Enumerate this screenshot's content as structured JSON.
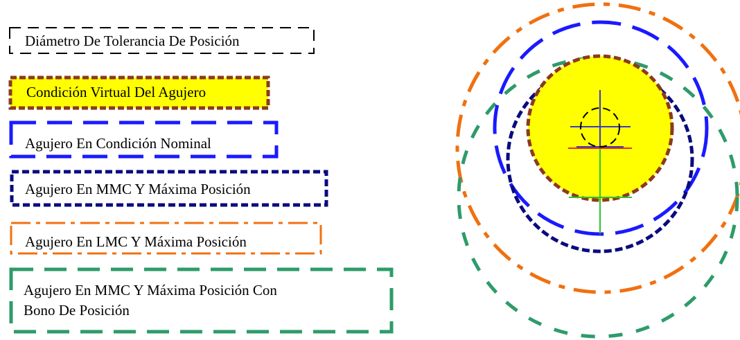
{
  "legend": [
    {
      "id": "position-tolerance",
      "label": "Diámetro De Tolerancia De Posición",
      "stroke": "#000000",
      "fill": "none"
    },
    {
      "id": "virtual-condition",
      "label": "Condición Virtual Del Agujero",
      "stroke": "#8B3A1E",
      "fill": "#FFFF00"
    },
    {
      "id": "nominal",
      "label": "Agujero En Condición Nominal",
      "stroke": "#1A1AFF",
      "fill": "none"
    },
    {
      "id": "mmc-max",
      "label": "Agujero En MMC Y Máxima Posición",
      "stroke": "#0A0A80",
      "fill": "none"
    },
    {
      "id": "lmc-max",
      "label": "Agujero En LMC Y Máxima Posición",
      "stroke": "#F07010",
      "fill": "none"
    },
    {
      "id": "mmc-bonus",
      "label_lines": [
        "Agujero En MMC Y Máxima Posición Con",
        "Bono De Posición"
      ],
      "stroke": "#2E9B6A",
      "fill": "none"
    }
  ],
  "colors": {
    "axis_vertical": "#3A3AC8",
    "axis_horizontal": "#3A3AC8",
    "tick_red": "#E03020",
    "tick_green": "#30C030"
  }
}
